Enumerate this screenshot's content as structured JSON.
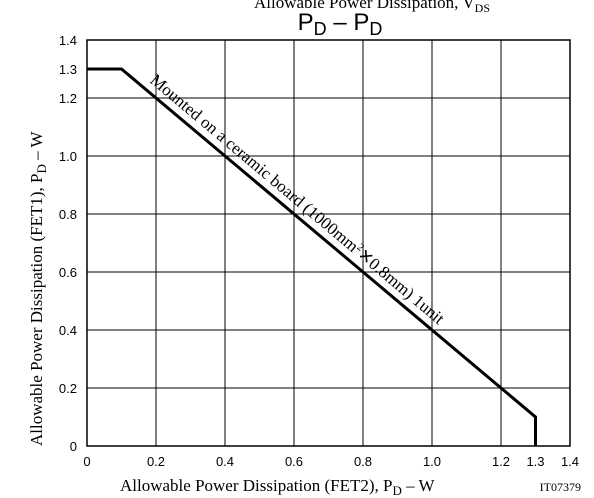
{
  "chart_data": {
    "type": "line",
    "top_text": "Allowable Power Dissipation, V",
    "top_text_sub": "DS",
    "title": "P",
    "title_sub": "D",
    "title_sep": " – ",
    "xlabel": "Allowable Power Dissipation (FET2), P",
    "xlabel_sub": "D",
    "xlabel_unit": " – W",
    "ylabel": "Allowable Power Dissipation (FET1), P",
    "ylabel_sub": "D",
    "ylabel_unit": " – W",
    "code": "IT07379",
    "xlim": [
      0,
      1.4
    ],
    "ylim": [
      0,
      1.4
    ],
    "grid": true,
    "x_ticks": [
      "0",
      "0.2",
      "0.4",
      "0.6",
      "0.8",
      "1.0",
      "1.2",
      "1.3",
      "1.4"
    ],
    "y_ticks": [
      "0",
      "0.2",
      "0.4",
      "0.6",
      "0.8",
      "1.0",
      "1.2",
      "1.3",
      "1.4"
    ],
    "series": [
      {
        "x": [
          0,
          0.1,
          1.3,
          1.3
        ],
        "y": [
          1.3,
          1.3,
          0.1,
          0
        ]
      }
    ],
    "annotation": {
      "text_a": "Mounted on a ceramic board (1000mm",
      "sup": "2",
      "text_b": "✕0.8mm) 1unit"
    }
  }
}
